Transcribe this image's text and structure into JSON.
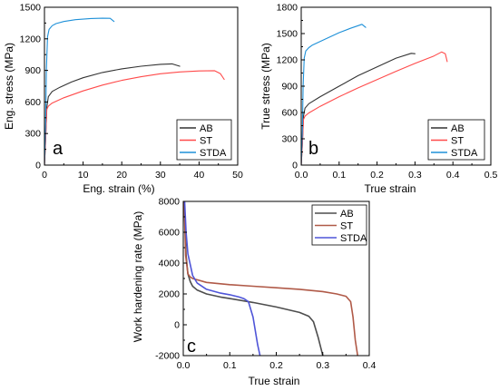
{
  "chart_data": [
    {
      "type": "line",
      "panel_label": "a",
      "xlabel": "Eng. strain (%)",
      "ylabel": "Eng. stress (MPa)",
      "xlim": [
        0,
        50
      ],
      "ylim": [
        0,
        1500
      ],
      "xticks": [
        "0",
        "10",
        "20",
        "30",
        "40",
        "50"
      ],
      "yticks": [
        "0",
        "300",
        "600",
        "900",
        "1200",
        "1500"
      ],
      "legend": "bottom-right",
      "series": [
        {
          "name": "AB",
          "color": "#333333",
          "x": [
            0,
            0.3,
            0.6,
            1.0,
            2,
            4,
            7,
            10,
            15,
            20,
            25,
            30,
            33,
            35
          ],
          "y": [
            0,
            250,
            550,
            650,
            700,
            740,
            790,
            830,
            880,
            915,
            940,
            958,
            962,
            940
          ]
        },
        {
          "name": "ST",
          "color": "#ff4a4a",
          "x": [
            0,
            0.3,
            0.6,
            1.0,
            2,
            5,
            10,
            15,
            20,
            25,
            30,
            35,
            40,
            44,
            45.5,
            46.5
          ],
          "y": [
            0,
            250,
            530,
            560,
            590,
            640,
            705,
            760,
            805,
            840,
            868,
            885,
            895,
            897,
            870,
            815
          ]
        },
        {
          "name": "STDA",
          "color": "#1e90d8",
          "x": [
            0,
            0.3,
            0.5,
            0.8,
            1.2,
            2,
            3,
            5,
            8,
            12,
            15,
            17,
            18
          ],
          "y": [
            0,
            400,
            900,
            1220,
            1290,
            1325,
            1345,
            1365,
            1382,
            1393,
            1396,
            1395,
            1365
          ]
        }
      ]
    },
    {
      "type": "line",
      "panel_label": "b",
      "xlabel": "True strain",
      "ylabel": "True stress (MPa)",
      "xlim": [
        0,
        0.5
      ],
      "ylim": [
        0,
        1800
      ],
      "xticks": [
        "0.0",
        "0.1",
        "0.2",
        "0.3",
        "0.4",
        "0.5"
      ],
      "yticks": [
        "0",
        "300",
        "600",
        "900",
        "1200",
        "1500",
        "1800"
      ],
      "legend": "bottom-right",
      "series": [
        {
          "name": "AB",
          "color": "#333333",
          "x": [
            0,
            0.003,
            0.006,
            0.01,
            0.02,
            0.05,
            0.1,
            0.15,
            0.2,
            0.25,
            0.29,
            0.3
          ],
          "y": [
            0,
            250,
            560,
            650,
            700,
            780,
            900,
            1020,
            1120,
            1220,
            1275,
            1270
          ]
        },
        {
          "name": "ST",
          "color": "#ff4a4a",
          "x": [
            0,
            0.003,
            0.006,
            0.01,
            0.02,
            0.05,
            0.1,
            0.15,
            0.2,
            0.25,
            0.3,
            0.35,
            0.37,
            0.38,
            0.385
          ],
          "y": [
            0,
            250,
            520,
            560,
            595,
            670,
            780,
            880,
            975,
            1070,
            1160,
            1245,
            1290,
            1270,
            1180
          ]
        },
        {
          "name": "STDA",
          "color": "#1e90d8",
          "x": [
            0,
            0.003,
            0.005,
            0.008,
            0.012,
            0.02,
            0.03,
            0.06,
            0.1,
            0.13,
            0.15,
            0.16,
            0.17
          ],
          "y": [
            0,
            400,
            900,
            1220,
            1300,
            1340,
            1370,
            1430,
            1510,
            1560,
            1590,
            1605,
            1570
          ]
        }
      ]
    },
    {
      "type": "line",
      "panel_label": "c",
      "xlabel": "True strain",
      "ylabel": "Work hardening rate (MPa)",
      "xlim": [
        0,
        0.4
      ],
      "ylim": [
        -2000,
        8000
      ],
      "xticks": [
        "0.0",
        "0.1",
        "0.2",
        "0.3",
        "0.4"
      ],
      "yticks": [
        "-2000",
        "0",
        "2000",
        "4000",
        "6000",
        "8000"
      ],
      "legend": "top-right",
      "series": [
        {
          "name": "AB",
          "color": "#4d4d4d",
          "x": [
            0.002,
            0.006,
            0.01,
            0.015,
            0.02,
            0.03,
            0.05,
            0.08,
            0.1,
            0.15,
            0.2,
            0.25,
            0.27,
            0.28,
            0.29,
            0.3
          ],
          "y": [
            8000,
            4500,
            3300,
            2800,
            2500,
            2250,
            2000,
            1800,
            1700,
            1450,
            1150,
            800,
            550,
            200,
            -800,
            -2000
          ]
        },
        {
          "name": "ST",
          "color": "#b05a48",
          "x": [
            0.002,
            0.005,
            0.01,
            0.015,
            0.02,
            0.05,
            0.1,
            0.15,
            0.2,
            0.25,
            0.3,
            0.33,
            0.35,
            0.36,
            0.365,
            0.37,
            0.375
          ],
          "y": [
            8000,
            4500,
            3300,
            3100,
            3000,
            2750,
            2600,
            2500,
            2400,
            2300,
            2150,
            2000,
            1850,
            1500,
            500,
            -1000,
            -2000
          ]
        },
        {
          "name": "STDA",
          "color": "#4f55d8",
          "x": [
            0.003,
            0.006,
            0.01,
            0.015,
            0.02,
            0.03,
            0.05,
            0.08,
            0.1,
            0.12,
            0.13,
            0.14,
            0.15,
            0.16,
            0.165
          ],
          "y": [
            8000,
            6000,
            4600,
            3900,
            3200,
            2700,
            2300,
            2050,
            1950,
            1800,
            1700,
            1500,
            500,
            -1300,
            -2000
          ]
        }
      ]
    }
  ]
}
